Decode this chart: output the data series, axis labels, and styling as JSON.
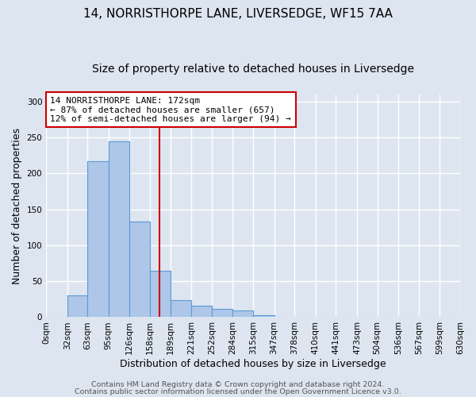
{
  "title": "14, NORRISTHORPE LANE, LIVERSEDGE, WF15 7AA",
  "subtitle": "Size of property relative to detached houses in Liversedge",
  "xlabel": "Distribution of detached houses by size in Liversedge",
  "ylabel": "Number of detached properties",
  "bar_edges": [
    0,
    32,
    63,
    95,
    126,
    158,
    189,
    221,
    252,
    284,
    315,
    347,
    378,
    410,
    441,
    473,
    504,
    536,
    567,
    599,
    630
  ],
  "bar_heights": [
    0,
    30,
    217,
    245,
    133,
    65,
    24,
    16,
    12,
    9,
    3,
    0,
    0,
    0,
    0,
    0,
    0,
    0,
    0,
    1
  ],
  "bar_color": "#aec6e8",
  "bar_edge_color": "#5b9bd5",
  "vline_x": 172,
  "vline_color": "#cc0000",
  "ylim": [
    0,
    310
  ],
  "yticks": [
    0,
    50,
    100,
    150,
    200,
    250,
    300
  ],
  "xtick_labels": [
    "0sqm",
    "32sqm",
    "63sqm",
    "95sqm",
    "126sqm",
    "158sqm",
    "189sqm",
    "221sqm",
    "252sqm",
    "284sqm",
    "315sqm",
    "347sqm",
    "378sqm",
    "410sqm",
    "441sqm",
    "473sqm",
    "504sqm",
    "536sqm",
    "567sqm",
    "599sqm",
    "630sqm"
  ],
  "annotation_title": "14 NORRISTHORPE LANE: 172sqm",
  "annotation_line1": "← 87% of detached houses are smaller (657)",
  "annotation_line2": "12% of semi-detached houses are larger (94) →",
  "annotation_box_color": "#cc0000",
  "footer_line1": "Contains HM Land Registry data © Crown copyright and database right 2024.",
  "footer_line2": "Contains public sector information licensed under the Open Government Licence v3.0.",
  "background_color": "#dde5f0",
  "plot_bg_color": "#dde5f0",
  "grid_color": "#ffffff",
  "title_fontsize": 11,
  "subtitle_fontsize": 10,
  "axis_label_fontsize": 9,
  "tick_fontsize": 7.5,
  "annotation_fontsize": 8,
  "footer_fontsize": 6.8
}
